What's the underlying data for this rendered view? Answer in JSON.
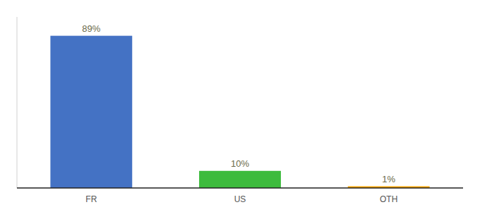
{
  "chart_data": {
    "type": "bar",
    "categories": [
      "FR",
      "US",
      "OTH"
    ],
    "values": [
      89,
      10,
      1
    ],
    "value_labels": [
      "89%",
      "10%",
      "1%"
    ],
    "colors": [
      "#4472C4",
      "#3DBB3D",
      "#FFA500"
    ],
    "ylim": [
      0,
      100
    ],
    "data_labels": true,
    "tick_labels": "x",
    "grid": false
  }
}
